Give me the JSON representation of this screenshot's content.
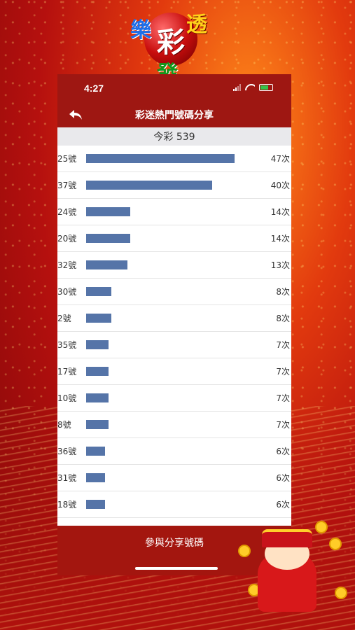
{
  "logo": {
    "chars": [
      "樂",
      "彩",
      "透",
      "發"
    ]
  },
  "status": {
    "time": "4:27"
  },
  "nav": {
    "title": "彩迷熱門號碼分享",
    "back_icon": "back-arrow-icon"
  },
  "subheader": {
    "title": "今彩 539"
  },
  "chart_data": {
    "type": "bar",
    "categories": [
      "25號",
      "37號",
      "24號",
      "20號",
      "32號",
      "30號",
      "2號",
      "35號",
      "17號",
      "10號",
      "8號",
      "36號",
      "31號",
      "18號"
    ],
    "values": [
      47,
      40,
      14,
      14,
      13,
      8,
      8,
      7,
      7,
      7,
      7,
      6,
      6,
      6
    ],
    "labels": [
      "47次",
      "40次",
      "14次",
      "14次",
      "13次",
      "8次",
      "8次",
      "7次",
      "7次",
      "7次",
      "7次",
      "6次",
      "6次",
      "6次"
    ],
    "bar_color": "#5574a8"
  },
  "footer": {
    "button_label": "參與分享號碼"
  },
  "colors": {
    "header": "#9e1712",
    "footer": "#a3160f"
  }
}
